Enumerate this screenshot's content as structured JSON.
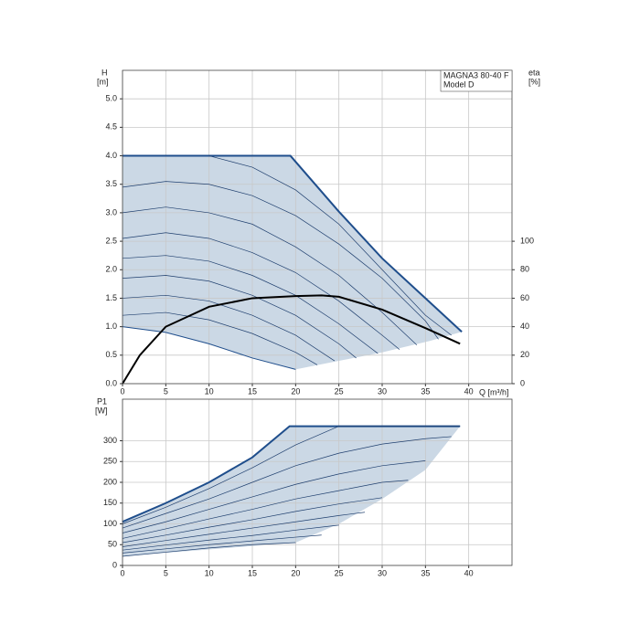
{
  "chart_data": [
    {
      "type": "line",
      "y_label": "H",
      "y_unit": "[m]",
      "y2_label": "eta",
      "y2_unit": "[%]",
      "x_label": "Q [m³/h]",
      "legend_lines": [
        "MAGNA3 80-40 F",
        "Model D"
      ],
      "xlim": [
        0,
        45
      ],
      "xticks": [
        0,
        5,
        10,
        15,
        20,
        25,
        30,
        35,
        40
      ],
      "ylim": [
        0,
        5.5
      ],
      "yticks": [
        {
          "value": 0,
          "label": "0.0"
        },
        {
          "value": 0.5,
          "label": "0.5"
        },
        {
          "value": 1,
          "label": "1.0"
        },
        {
          "value": 1.5,
          "label": "1.5"
        },
        {
          "value": 2,
          "label": "2.0"
        },
        {
          "value": 2.5,
          "label": "2.5"
        },
        {
          "value": 3,
          "label": "3.0"
        },
        {
          "value": 3.5,
          "label": "3.5"
        },
        {
          "value": 4,
          "label": "4.0"
        },
        {
          "value": 4.5,
          "label": "4.5"
        },
        {
          "value": 5,
          "label": "5.0"
        }
      ],
      "y2lim": [
        0,
        220
      ],
      "y2ticks": [
        0,
        20,
        40,
        60,
        80,
        100
      ],
      "grid": true,
      "region": {
        "color": "#cbd8e5",
        "x": [
          0,
          19.4,
          25,
          30,
          35,
          39.2,
          35.5,
          30,
          25,
          20,
          15,
          10,
          5,
          0
        ],
        "values": [
          4.0,
          4.0,
          3.02,
          2.2,
          1.5,
          0.91,
          0.75,
          0.55,
          0.4,
          0.25,
          0.45,
          0.7,
          0.9,
          1.0
        ]
      },
      "series": [
        {
          "color": "#1f4e8c",
          "width": 2,
          "x": [
            0,
            19.4,
            25,
            30,
            35,
            39.2
          ],
          "values": [
            4.0,
            4.0,
            3.02,
            2.2,
            1.5,
            0.91
          ]
        },
        {
          "color": "#1f4e8c",
          "width": 1,
          "x": [
            0,
            5,
            10,
            15,
            20
          ],
          "values": [
            1.0,
            0.9,
            0.7,
            0.45,
            0.25
          ]
        },
        {
          "color": "#1f3f6e",
          "width": 0.7,
          "x": [
            10,
            15,
            20,
            25,
            30,
            35,
            38
          ],
          "values": [
            4.0,
            3.8,
            3.4,
            2.8,
            2.0,
            1.2,
            0.85
          ]
        },
        {
          "color": "#1f3f6e",
          "width": 0.7,
          "x": [
            0,
            5,
            10,
            15,
            20,
            25,
            30,
            35,
            36.5
          ],
          "values": [
            3.45,
            3.55,
            3.5,
            3.3,
            2.95,
            2.45,
            1.85,
            1.1,
            0.78
          ]
        },
        {
          "color": "#1f3f6e",
          "width": 0.7,
          "x": [
            0,
            5,
            10,
            15,
            20,
            25,
            30,
            34
          ],
          "values": [
            3.0,
            3.1,
            3.0,
            2.8,
            2.4,
            1.9,
            1.25,
            0.68
          ]
        },
        {
          "color": "#1f3f6e",
          "width": 0.7,
          "x": [
            0,
            5,
            10,
            15,
            20,
            25,
            30,
            32
          ],
          "values": [
            2.55,
            2.65,
            2.55,
            2.3,
            1.95,
            1.45,
            0.85,
            0.6
          ]
        },
        {
          "color": "#1f3f6e",
          "width": 0.7,
          "x": [
            0,
            5,
            10,
            15,
            20,
            25,
            29.5
          ],
          "values": [
            2.2,
            2.25,
            2.15,
            1.9,
            1.55,
            1.05,
            0.53
          ]
        },
        {
          "color": "#1f3f6e",
          "width": 0.7,
          "x": [
            0,
            5,
            10,
            15,
            20,
            25,
            27
          ],
          "values": [
            1.85,
            1.9,
            1.8,
            1.55,
            1.2,
            0.7,
            0.45
          ]
        },
        {
          "color": "#1f3f6e",
          "width": 0.7,
          "x": [
            0,
            5,
            10,
            15,
            20,
            24.5
          ],
          "values": [
            1.5,
            1.55,
            1.45,
            1.2,
            0.85,
            0.4
          ]
        },
        {
          "color": "#1f3f6e",
          "width": 0.7,
          "x": [
            0,
            5,
            10,
            15,
            20,
            22.5
          ],
          "values": [
            1.2,
            1.25,
            1.12,
            0.88,
            0.55,
            0.33
          ]
        },
        {
          "color": "#000000",
          "width": 2,
          "axis": "y2",
          "x": [
            0,
            2,
            5,
            10,
            15,
            20,
            23,
            25,
            30,
            35,
            39
          ],
          "values": [
            0,
            20,
            40,
            54,
            60,
            61.5,
            62,
            61,
            52,
            39,
            28
          ]
        }
      ]
    },
    {
      "type": "line",
      "y_label": "P1",
      "y_unit": "[W]",
      "xlim": [
        0,
        45
      ],
      "xticks": [
        0,
        5,
        10,
        15,
        20,
        25,
        30,
        35,
        40
      ],
      "ylim": [
        0,
        400
      ],
      "yticks": [
        0,
        50,
        100,
        150,
        200,
        250,
        300
      ],
      "grid": true,
      "region": {
        "color": "#cbd8e5",
        "x": [
          0,
          5,
          10,
          15,
          19.3,
          39,
          35,
          30,
          25,
          20,
          0
        ],
        "values": [
          105,
          150,
          200,
          260,
          335,
          335,
          230,
          160,
          100,
          55,
          22
        ]
      },
      "series": [
        {
          "color": "#1f4e8c",
          "width": 2,
          "x": [
            0,
            5,
            10,
            15,
            19.3,
            39
          ],
          "values": [
            105,
            150,
            200,
            260,
            335,
            335
          ]
        },
        {
          "color": "#1f3f6e",
          "width": 0.7,
          "x": [
            0,
            5,
            10,
            15,
            20,
            25,
            39
          ],
          "values": [
            100,
            140,
            185,
            235,
            290,
            335,
            335
          ]
        },
        {
          "color": "#1f3f6e",
          "width": 0.7,
          "x": [
            0,
            5,
            10,
            15,
            20,
            25,
            30,
            35,
            38
          ],
          "values": [
            90,
            125,
            160,
            200,
            240,
            270,
            292,
            305,
            310
          ]
        },
        {
          "color": "#1f3f6e",
          "width": 0.7,
          "x": [
            0,
            5,
            10,
            15,
            20,
            25,
            30,
            35
          ],
          "values": [
            78,
            105,
            135,
            165,
            195,
            220,
            240,
            252
          ]
        },
        {
          "color": "#1f3f6e",
          "width": 0.7,
          "x": [
            0,
            5,
            10,
            15,
            20,
            25,
            30,
            33
          ],
          "values": [
            65,
            88,
            112,
            135,
            160,
            180,
            200,
            205
          ]
        },
        {
          "color": "#1f3f6e",
          "width": 0.7,
          "x": [
            0,
            5,
            10,
            15,
            20,
            25,
            30
          ],
          "values": [
            55,
            73,
            92,
            110,
            130,
            148,
            163
          ]
        },
        {
          "color": "#1f3f6e",
          "width": 0.7,
          "x": [
            0,
            5,
            10,
            15,
            20,
            25,
            28
          ],
          "values": [
            45,
            60,
            75,
            90,
            105,
            120,
            128
          ]
        },
        {
          "color": "#1f3f6e",
          "width": 0.7,
          "x": [
            0,
            5,
            10,
            15,
            20,
            25
          ],
          "values": [
            37,
            49,
            61,
            72,
            85,
            97
          ]
        },
        {
          "color": "#1f3f6e",
          "width": 0.7,
          "x": [
            0,
            5,
            10,
            15,
            20,
            23
          ],
          "values": [
            30,
            40,
            50,
            59,
            68,
            73
          ]
        },
        {
          "color": "#1f3f6e",
          "width": 0.7,
          "x": [
            0,
            5,
            10,
            15,
            20
          ],
          "values": [
            22,
            32,
            42,
            50,
            55
          ]
        }
      ]
    }
  ]
}
